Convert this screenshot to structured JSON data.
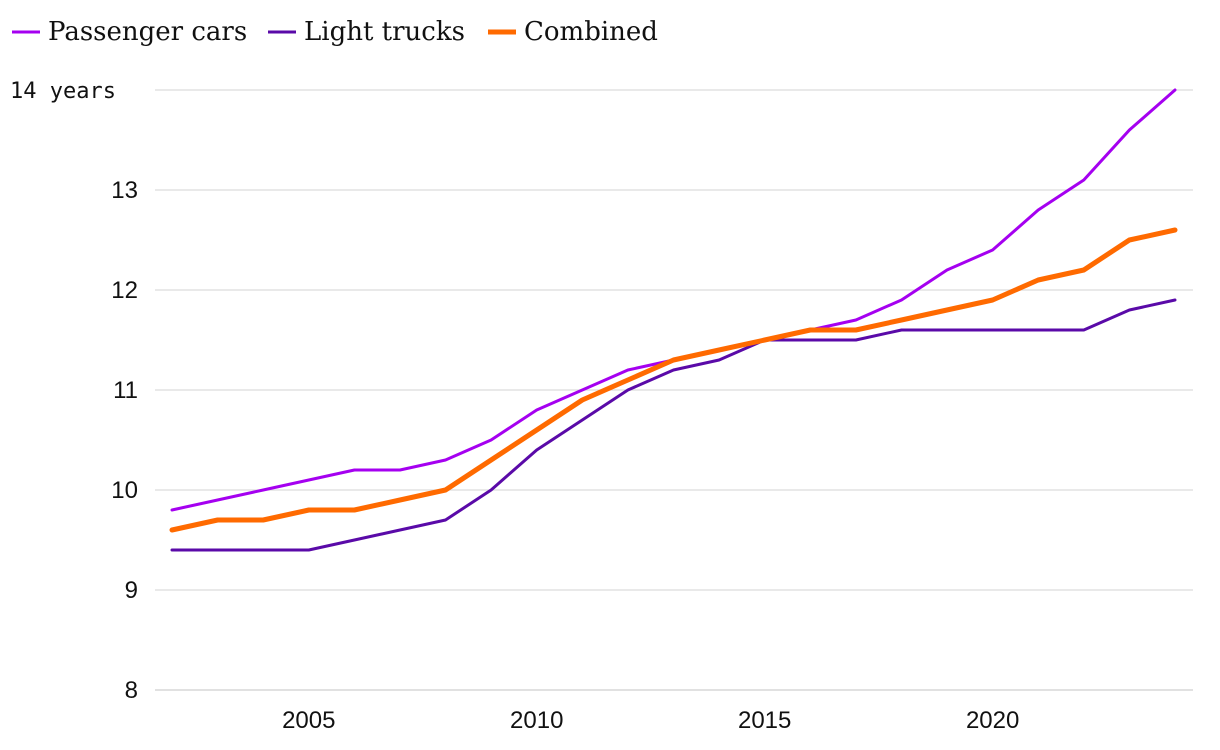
{
  "chart_data": {
    "type": "line",
    "title": "",
    "xlabel": "",
    "ylabel": "",
    "y_unit_label": "14 years",
    "xlim": [
      2002,
      2024
    ],
    "ylim": [
      8,
      14
    ],
    "x_ticks": [
      2005,
      2010,
      2015,
      2020
    ],
    "y_ticks": [
      8,
      9,
      10,
      11,
      12,
      13,
      14
    ],
    "grid": true,
    "legend_position": "top-left",
    "x": [
      2002,
      2003,
      2004,
      2005,
      2006,
      2007,
      2008,
      2009,
      2010,
      2011,
      2012,
      2013,
      2014,
      2015,
      2016,
      2017,
      2018,
      2019,
      2020,
      2021,
      2022,
      2023,
      2024
    ],
    "series": [
      {
        "name": "Passenger cars",
        "color": "#a500f0",
        "values": [
          9.8,
          9.9,
          10.0,
          10.1,
          10.2,
          10.2,
          10.3,
          10.5,
          10.8,
          11.0,
          11.2,
          11.3,
          11.4,
          11.5,
          11.6,
          11.7,
          11.9,
          12.2,
          12.4,
          12.8,
          13.1,
          13.6,
          14.0
        ]
      },
      {
        "name": "Light trucks",
        "color": "#5a0aa8",
        "values": [
          9.4,
          9.4,
          9.4,
          9.4,
          9.5,
          9.6,
          9.7,
          10.0,
          10.4,
          10.7,
          11.0,
          11.2,
          11.3,
          11.5,
          11.5,
          11.5,
          11.6,
          11.6,
          11.6,
          11.6,
          11.6,
          11.8,
          11.9
        ]
      },
      {
        "name": "Combined",
        "color": "#ff6a00",
        "values": [
          9.6,
          9.7,
          9.7,
          9.8,
          9.8,
          9.9,
          10.0,
          10.3,
          10.6,
          10.9,
          11.1,
          11.3,
          11.4,
          11.5,
          11.6,
          11.6,
          11.7,
          11.8,
          11.9,
          12.1,
          12.2,
          12.5,
          12.6
        ]
      }
    ]
  }
}
